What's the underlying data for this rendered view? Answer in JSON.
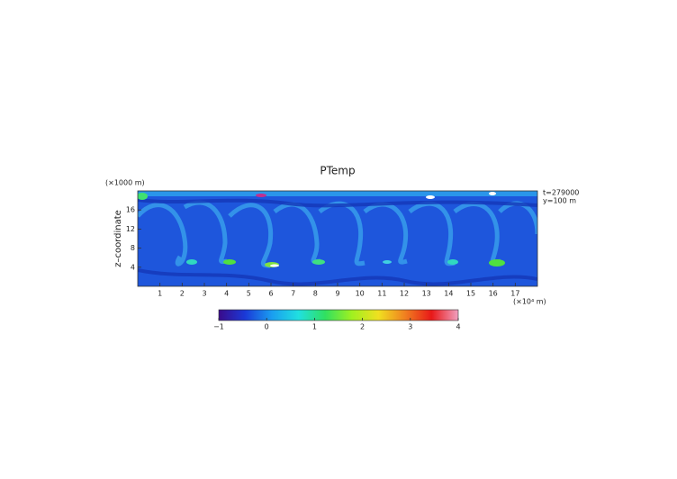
{
  "chart_data": {
    "type": "heatmap",
    "title": "PTemp",
    "y_label": "z–coordinate",
    "y_unit": "(×1000 m)",
    "x_unit": "(×10⁴ m)",
    "annotations": [
      "t=279000",
      "y=100 m"
    ],
    "xlim": [
      0,
      18
    ],
    "xticks": [
      1,
      2,
      3,
      4,
      5,
      6,
      7,
      8,
      9,
      10,
      11,
      12,
      13,
      14,
      15,
      16,
      17
    ],
    "ylim": [
      0,
      20
    ],
    "yticks": [
      4,
      8,
      12,
      16
    ],
    "colorbar": {
      "lim": [
        -1,
        4
      ],
      "ticks": [
        {
          "value": -1,
          "label": "−1"
        },
        0,
        1,
        2,
        3,
        4
      ],
      "colors": [
        "#3a0a8a",
        "#1a3ad8",
        "#1a9ef0",
        "#20e0e0",
        "#30e060",
        "#a0f020",
        "#f0e020",
        "#f08020",
        "#e81818",
        "#f0a0c0"
      ]
    }
  }
}
